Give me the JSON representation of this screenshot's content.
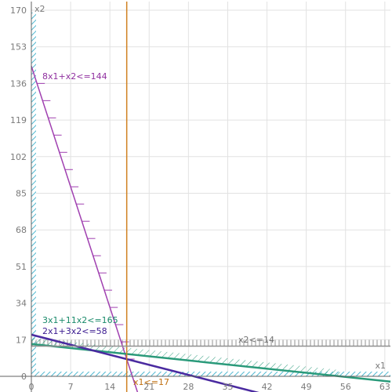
{
  "chart_data": {
    "type": "line",
    "title": "",
    "xlabel": "x1",
    "ylabel": "x2",
    "xlim": [
      0,
      64
    ],
    "ylim": [
      0,
      174
    ],
    "xticks": [
      0,
      7,
      14,
      21,
      28,
      35,
      42,
      49,
      56,
      63
    ],
    "yticks": [
      0,
      17,
      34,
      51,
      68,
      85,
      102,
      119,
      136,
      153,
      170
    ],
    "grid": true,
    "constraints": [
      {
        "label": "8x1+x2<=144",
        "a": 8,
        "b": 1,
        "rhs": 144,
        "color": "#a040b0",
        "text_color": "#9030a0",
        "line_width": 1.5,
        "hatch": "tick-marks"
      },
      {
        "label": "3x1+11x2<=165",
        "a": 3,
        "b": 11,
        "rhs": 165,
        "color": "#2a9a7a",
        "text_color": "#1a8a6a",
        "line_width": 2.5,
        "hatch": "diagonal"
      },
      {
        "label": "2x1+3x2<=58",
        "a": 2,
        "b": 3,
        "rhs": 58,
        "color": "#4a2aa0",
        "text_color": "#3a1a90",
        "line_width": 2.5,
        "hatch": "none"
      },
      {
        "label": "x1<=17",
        "a": 1,
        "b": 0,
        "rhs": 17,
        "color": "#d08020",
        "text_color": "#c07010",
        "line_width": 1.5,
        "hatch": "none"
      },
      {
        "label": "x2<=14",
        "a": 0,
        "b": 1,
        "rhs": 14,
        "color": "#909090",
        "text_color": "#707070",
        "line_width": 1.5,
        "hatch": "vertical"
      }
    ],
    "nonnegativity_hatch_color": "#50b8d0"
  }
}
